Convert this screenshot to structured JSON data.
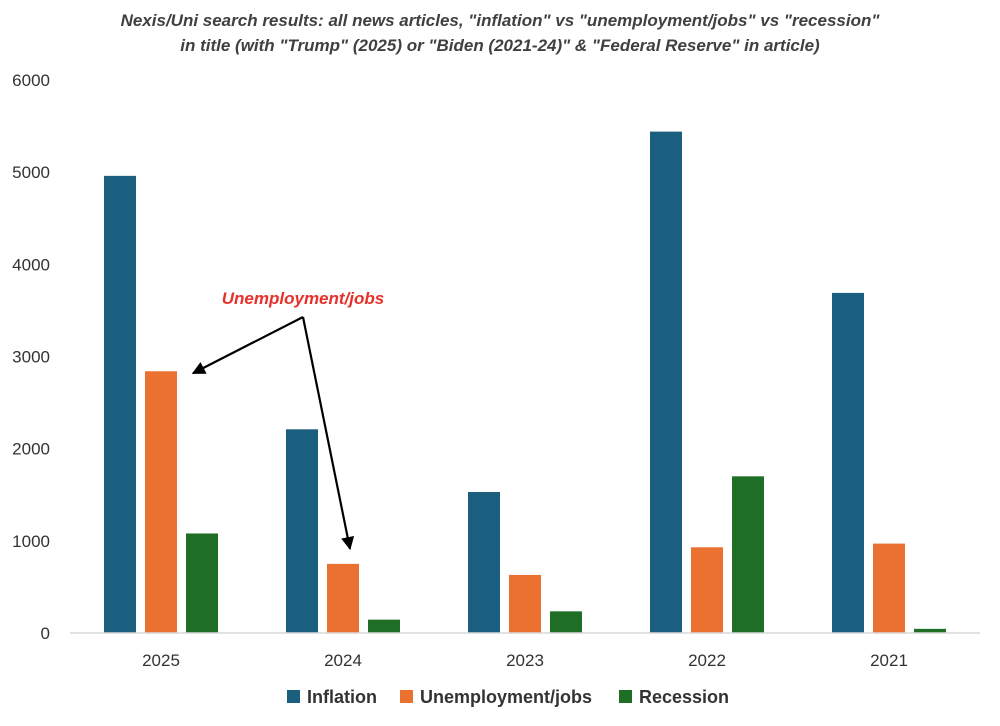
{
  "chart_data": {
    "type": "bar",
    "title_lines": [
      "Nexis/Uni search results: all news articles, \"inflation\" vs \"unemployment/jobs\" vs \"recession\"",
      "in title (with \"Trump\" (2025) or \"Biden (2021-24)\" & \"Federal Reserve\" in article)"
    ],
    "categories": [
      "2025",
      "2024",
      "2023",
      "2022",
      "2021"
    ],
    "series": [
      {
        "name": "Inflation",
        "color": "#1a5f80",
        "values": [
          4960,
          2210,
          1530,
          5440,
          3690
        ]
      },
      {
        "name": "Unemployment/jobs",
        "color": "#eb7131",
        "values": [
          2840,
          750,
          630,
          930,
          970
        ]
      },
      {
        "name": "Recession",
        "color": "#1e6e26",
        "values": [
          1080,
          145,
          235,
          1700,
          45
        ]
      }
    ],
    "ylim": [
      0,
      6000
    ],
    "yticks": [
      0,
      1000,
      2000,
      3000,
      4000,
      5000,
      6000
    ],
    "grid": false,
    "legend_position": "bottom",
    "annotation": {
      "text": "Unemployment/jobs",
      "points_to": [
        {
          "category": "2025",
          "series": "Unemployment/jobs"
        },
        {
          "category": "2024",
          "series": "Unemployment/jobs"
        }
      ]
    }
  }
}
